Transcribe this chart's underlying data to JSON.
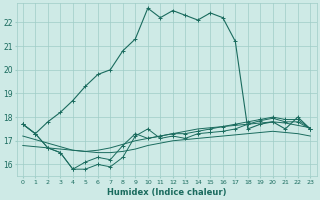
{
  "xlabel": "Humidex (Indice chaleur)",
  "bg_color": "#ceeae6",
  "grid_color": "#9fcdc7",
  "line_color": "#1a6b5e",
  "xlim": [
    -0.5,
    23.5
  ],
  "ylim": [
    15.5,
    22.8
  ],
  "yticks": [
    16,
    17,
    18,
    19,
    20,
    21,
    22
  ],
  "xtick_labels": [
    "0",
    "1",
    "2",
    "3",
    "4",
    "5",
    "6",
    "7",
    "8",
    "9",
    "10",
    "11",
    "12",
    "13",
    "14",
    "15",
    "16",
    "17",
    "18",
    "19",
    "20",
    "21",
    "22",
    "23"
  ],
  "series_high": [
    17.7,
    17.3,
    17.8,
    18.2,
    18.7,
    19.3,
    19.8,
    20.0,
    20.8,
    21.3,
    22.6,
    22.2,
    22.5,
    22.3,
    22.1,
    22.4,
    22.2,
    21.2,
    17.5,
    17.7,
    17.8,
    17.5,
    18.0,
    17.5
  ],
  "series_mid1": [
    17.7,
    17.3,
    16.7,
    16.5,
    15.8,
    16.1,
    16.3,
    16.2,
    16.8,
    17.3,
    17.1,
    17.2,
    17.3,
    17.3,
    17.4,
    17.5,
    17.6,
    17.7,
    17.8,
    17.9,
    18.0,
    17.9,
    17.9,
    17.5
  ],
  "series_mid2": [
    17.2,
    17.05,
    16.9,
    16.75,
    16.6,
    16.55,
    16.6,
    16.7,
    16.85,
    17.0,
    17.1,
    17.2,
    17.3,
    17.4,
    17.5,
    17.55,
    17.6,
    17.65,
    17.7,
    17.75,
    17.8,
    17.75,
    17.65,
    17.55
  ],
  "series_low": [
    16.8,
    16.75,
    16.7,
    16.65,
    16.6,
    16.55,
    16.5,
    16.5,
    16.55,
    16.65,
    16.8,
    16.9,
    17.0,
    17.05,
    17.1,
    17.15,
    17.2,
    17.25,
    17.3,
    17.35,
    17.4,
    17.35,
    17.3,
    17.2
  ],
  "series_jagged": [
    17.7,
    17.3,
    16.7,
    16.5,
    15.8,
    15.8,
    16.0,
    15.9,
    16.3,
    17.2,
    17.5,
    17.1,
    17.2,
    17.1,
    17.3,
    17.35,
    17.4,
    17.5,
    17.7,
    17.85,
    17.95,
    17.8,
    17.8,
    17.5
  ]
}
